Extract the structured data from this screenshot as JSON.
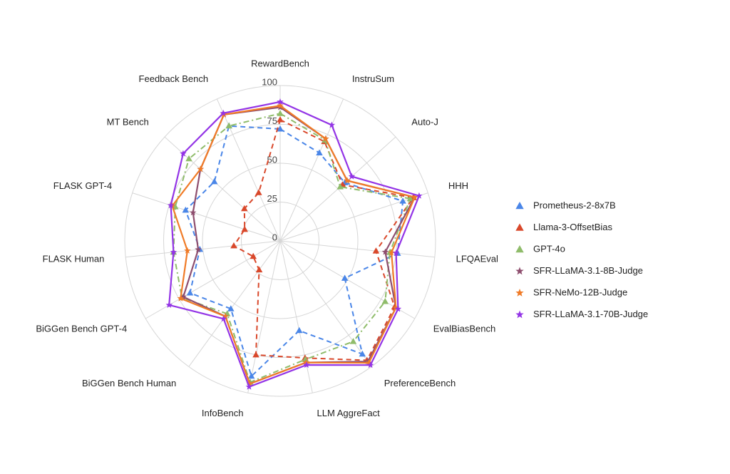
{
  "chart_data": {
    "type": "radar",
    "categories": [
      "RewardBench",
      "InstruSum",
      "Auto-J",
      "HHH",
      "LFQAEval",
      "EvalBiasBench",
      "PreferenceBench",
      "LLM AggreFact",
      "InfoBench",
      "BiGGen Bench Human",
      "BiGGen Bench GPT-4",
      "FLASK Human",
      "FLASK GPT-4",
      "MT Bench",
      "Feedback Bench"
    ],
    "rlim": [
      0,
      100
    ],
    "rticks": [
      0,
      25,
      50,
      75,
      100
    ],
    "grid": true,
    "legend": "right",
    "series": [
      {
        "name": "Prometheus-2-8x7B",
        "color": "#4a86e8",
        "marker": "triangle",
        "line": "dashed",
        "values": [
          72,
          62,
          56,
          83,
          76,
          48,
          90,
          59,
          89,
          54,
          67,
          52,
          64,
          57,
          81
        ]
      },
      {
        "name": "Llama-3-OffsetBias",
        "color": "#d9482b",
        "marker": "triangle",
        "line": "dashed",
        "values": [
          78,
          70,
          54,
          90,
          62,
          85,
          95,
          77,
          75,
          23,
          20,
          30,
          24,
          31,
          34
        ]
      },
      {
        "name": "GPT-4o",
        "color": "#8fbc6a",
        "marker": "triangle",
        "line": "dashdot",
        "values": [
          82,
          71,
          52,
          88,
          71,
          78,
          80,
          78,
          93,
          58,
          73,
          69,
          71,
          79,
          81
        ]
      },
      {
        "name": "SFR-LLaMA-3.1-8B-Judge",
        "color": "#8e4e6e",
        "marker": "star",
        "line": "solid",
        "values": [
          86,
          72,
          58,
          91,
          68,
          86,
          96,
          80,
          94,
          60,
          72,
          53,
          59,
          69,
          89
        ]
      },
      {
        "name": "SFR-NeMo-12B-Judge",
        "color": "#f07b27",
        "marker": "star",
        "line": "solid",
        "values": [
          87,
          72,
          58,
          91,
          72,
          86,
          97,
          80,
          94,
          60,
          74,
          60,
          73,
          69,
          89
        ]
      },
      {
        "name": "SFR-LLaMA-3.1-70B-Judge",
        "color": "#9334e6",
        "marker": "star",
        "line": "solid",
        "values": [
          89.5,
          81.6,
          62,
          94,
          75,
          87.6,
          98.8,
          81.6,
          96,
          62,
          82.5,
          69,
          74,
          84,
          90
        ]
      }
    ]
  }
}
